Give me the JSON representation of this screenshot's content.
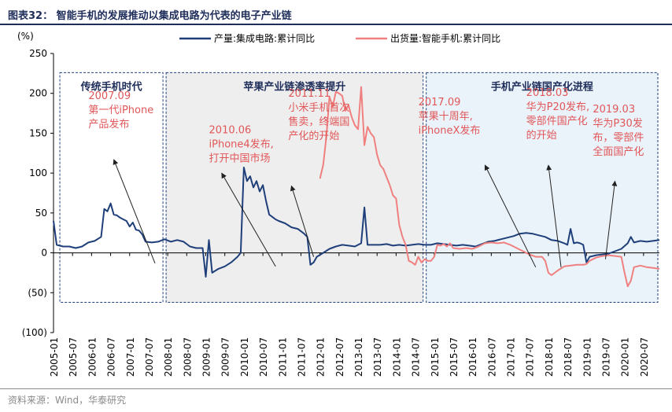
{
  "header": {
    "title": "图表32：  智能手机的发展推动以集成电路为代表的电子产业链"
  },
  "footer": {
    "source": "资料来源：Wind，华泰研究"
  },
  "chart_data": {
    "type": "line",
    "ylabel": "(%)",
    "ylim": [
      -100,
      250
    ],
    "yticks": [
      250,
      200,
      150,
      100,
      50,
      0,
      -50,
      -100
    ],
    "ytick_labels": [
      "250",
      "200",
      "150",
      "100",
      "50",
      "0",
      "(50)",
      "(100)"
    ],
    "x_tick_labels": [
      "2005-01",
      "2005-07",
      "2006-01",
      "2006-07",
      "2007-01",
      "2007-07",
      "2008-01",
      "2008-07",
      "2009-01",
      "2009-07",
      "2010-01",
      "2010-07",
      "2011-01",
      "2011-07",
      "2012-01",
      "2012-07",
      "2013-01",
      "2013-07",
      "2014-01",
      "2014-07",
      "2015-01",
      "2015-07",
      "2016-01",
      "2016-07",
      "2017-01",
      "2017-07",
      "2018-01",
      "2018-07",
      "2019-01",
      "2019-07",
      "2020-01",
      "2020-07"
    ],
    "legend_position": "top",
    "series": [
      {
        "name": "产量:集成电路:累计同比",
        "color": "#1f3f7a",
        "points": [
          [
            "2005-01",
            40
          ],
          [
            "2005-02",
            10
          ],
          [
            "2005-04",
            8
          ],
          [
            "2005-06",
            8
          ],
          [
            "2005-08",
            6
          ],
          [
            "2005-10",
            8
          ],
          [
            "2005-12",
            13
          ],
          [
            "2006-02",
            15
          ],
          [
            "2006-04",
            20
          ],
          [
            "2006-05",
            55
          ],
          [
            "2006-06",
            52
          ],
          [
            "2006-07",
            62
          ],
          [
            "2006-08",
            48
          ],
          [
            "2006-09",
            47
          ],
          [
            "2006-10",
            44
          ],
          [
            "2006-11",
            42
          ],
          [
            "2006-12",
            40
          ],
          [
            "2007-01",
            33
          ],
          [
            "2007-02",
            38
          ],
          [
            "2007-03",
            29
          ],
          [
            "2007-04",
            28
          ],
          [
            "2007-05",
            23
          ],
          [
            "2007-06",
            14
          ],
          [
            "2007-08",
            13
          ],
          [
            "2007-10",
            14
          ],
          [
            "2007-12",
            17
          ],
          [
            "2008-02",
            14
          ],
          [
            "2008-04",
            16
          ],
          [
            "2008-06",
            14
          ],
          [
            "2008-08",
            8
          ],
          [
            "2008-10",
            6
          ],
          [
            "2008-12",
            6
          ],
          [
            "2009-01",
            -30
          ],
          [
            "2009-02",
            16
          ],
          [
            "2009-03",
            -25
          ],
          [
            "2009-05",
            -20
          ],
          [
            "2009-07",
            -17
          ],
          [
            "2009-09",
            -12
          ],
          [
            "2009-11",
            -5
          ],
          [
            "2009-12",
            0
          ],
          [
            "2010-01",
            107
          ],
          [
            "2010-02",
            90
          ],
          [
            "2010-03",
            96
          ],
          [
            "2010-04",
            82
          ],
          [
            "2010-05",
            90
          ],
          [
            "2010-06",
            77
          ],
          [
            "2010-07",
            85
          ],
          [
            "2010-08",
            65
          ],
          [
            "2010-09",
            48
          ],
          [
            "2010-10",
            45
          ],
          [
            "2010-11",
            42
          ],
          [
            "2010-12",
            40
          ],
          [
            "2011-02",
            37
          ],
          [
            "2011-04",
            32
          ],
          [
            "2011-06",
            30
          ],
          [
            "2011-08",
            24
          ],
          [
            "2011-09",
            20
          ],
          [
            "2011-10",
            -15
          ],
          [
            "2011-11",
            -12
          ],
          [
            "2011-12",
            -5
          ],
          [
            "2012-02",
            0
          ],
          [
            "2012-04",
            5
          ],
          [
            "2012-06",
            8
          ],
          [
            "2012-08",
            10
          ],
          [
            "2012-10",
            9
          ],
          [
            "2012-12",
            8
          ],
          [
            "2013-02",
            12
          ],
          [
            "2013-03",
            57
          ],
          [
            "2013-04",
            10
          ],
          [
            "2013-06",
            10
          ],
          [
            "2013-08",
            10
          ],
          [
            "2013-10",
            11
          ],
          [
            "2013-12",
            9
          ],
          [
            "2014-02",
            10
          ],
          [
            "2014-04",
            9
          ],
          [
            "2014-06",
            10
          ],
          [
            "2014-08",
            11
          ],
          [
            "2014-10",
            10
          ],
          [
            "2014-12",
            10
          ],
          [
            "2015-02",
            12
          ],
          [
            "2015-04",
            11
          ],
          [
            "2015-06",
            10
          ],
          [
            "2015-08",
            9
          ],
          [
            "2015-10",
            10
          ],
          [
            "2015-12",
            9
          ],
          [
            "2016-02",
            8
          ],
          [
            "2016-04",
            11
          ],
          [
            "2016-06",
            14
          ],
          [
            "2016-08",
            15
          ],
          [
            "2016-10",
            17
          ],
          [
            "2016-12",
            19
          ],
          [
            "2017-02",
            21
          ],
          [
            "2017-04",
            24
          ],
          [
            "2017-06",
            25
          ],
          [
            "2017-08",
            24
          ],
          [
            "2017-10",
            22
          ],
          [
            "2017-12",
            20
          ],
          [
            "2018-02",
            16
          ],
          [
            "2018-04",
            15
          ],
          [
            "2018-06",
            12
          ],
          [
            "2018-07",
            10
          ],
          [
            "2018-08",
            30
          ],
          [
            "2018-09",
            12
          ],
          [
            "2018-10",
            13
          ],
          [
            "2018-11",
            12
          ],
          [
            "2018-12",
            10
          ],
          [
            "2019-01",
            -12
          ],
          [
            "2019-02",
            -5
          ],
          [
            "2019-04",
            -3
          ],
          [
            "2019-06",
            -2
          ],
          [
            "2019-08",
            -1
          ],
          [
            "2019-10",
            2
          ],
          [
            "2019-12",
            5
          ],
          [
            "2020-02",
            12
          ],
          [
            "2020-03",
            20
          ],
          [
            "2020-04",
            13
          ],
          [
            "2020-06",
            15
          ],
          [
            "2020-08",
            14
          ],
          [
            "2020-10",
            15
          ],
          [
            "2020-12",
            16
          ]
        ]
      },
      {
        "name": "出货量:智能手机:累计同比",
        "color": "#f08080",
        "points": [
          [
            "2012-01",
            93
          ],
          [
            "2012-02",
            110
          ],
          [
            "2012-03",
            145
          ],
          [
            "2012-04",
            196
          ],
          [
            "2012-05",
            183
          ],
          [
            "2012-06",
            202
          ],
          [
            "2012-07",
            200
          ],
          [
            "2012-08",
            197
          ],
          [
            "2012-09",
            178
          ],
          [
            "2012-10",
            185
          ],
          [
            "2012-11",
            170
          ],
          [
            "2012-12",
            160
          ],
          [
            "2013-01",
            155
          ],
          [
            "2013-02",
            208
          ],
          [
            "2013-03",
            135
          ],
          [
            "2013-04",
            158
          ],
          [
            "2013-05",
            150
          ],
          [
            "2013-06",
            145
          ],
          [
            "2013-07",
            123
          ],
          [
            "2013-08",
            110
          ],
          [
            "2013-09",
            105
          ],
          [
            "2013-10",
            95
          ],
          [
            "2013-11",
            85
          ],
          [
            "2013-12",
            72
          ],
          [
            "2014-01",
            68
          ],
          [
            "2014-02",
            35
          ],
          [
            "2014-03",
            20
          ],
          [
            "2014-04",
            10
          ],
          [
            "2014-05",
            -10
          ],
          [
            "2014-06",
            -12
          ],
          [
            "2014-07",
            -15
          ],
          [
            "2014-08",
            -5
          ],
          [
            "2014-09",
            -12
          ],
          [
            "2014-10",
            -8
          ],
          [
            "2014-11",
            -10
          ],
          [
            "2014-12",
            -10
          ],
          [
            "2015-01",
            -5
          ],
          [
            "2015-02",
            10
          ],
          [
            "2015-03",
            9
          ],
          [
            "2015-04",
            11
          ],
          [
            "2015-05",
            8
          ],
          [
            "2015-06",
            12
          ],
          [
            "2015-07",
            6
          ],
          [
            "2015-09",
            5
          ],
          [
            "2015-11",
            6
          ],
          [
            "2016-01",
            5
          ],
          [
            "2016-03",
            8
          ],
          [
            "2016-05",
            12
          ],
          [
            "2016-07",
            13
          ],
          [
            "2016-09",
            12
          ],
          [
            "2016-11",
            13
          ],
          [
            "2017-01",
            10
          ],
          [
            "2017-03",
            6
          ],
          [
            "2017-05",
            2
          ],
          [
            "2017-07",
            -2
          ],
          [
            "2017-09",
            -5
          ],
          [
            "2017-11",
            -5
          ],
          [
            "2017-12",
            -10
          ],
          [
            "2018-01",
            -25
          ],
          [
            "2018-02",
            -28
          ],
          [
            "2018-04",
            -22
          ],
          [
            "2018-06",
            -17
          ],
          [
            "2018-08",
            -16
          ],
          [
            "2018-10",
            -15
          ],
          [
            "2018-12",
            -15
          ],
          [
            "2019-01",
            -14
          ],
          [
            "2019-02",
            -10
          ],
          [
            "2019-04",
            -6
          ],
          [
            "2019-06",
            -4
          ],
          [
            "2019-08",
            -3
          ],
          [
            "2019-10",
            -4
          ],
          [
            "2019-12",
            -5
          ],
          [
            "2020-01",
            -25
          ],
          [
            "2020-02",
            -42
          ],
          [
            "2020-03",
            -35
          ],
          [
            "2020-04",
            -18
          ],
          [
            "2020-06",
            -16
          ],
          [
            "2020-08",
            -18
          ],
          [
            "2020-10",
            -19
          ],
          [
            "2020-12",
            -20
          ]
        ]
      }
    ],
    "regions": [
      {
        "label": "传统手机时代",
        "from": "2005-03",
        "to": "2007-12",
        "fill": "#ffffff"
      },
      {
        "label": "苹果产业链渗透率提升",
        "from": "2007-12",
        "to": "2014-10",
        "fill": "#eeeeee"
      },
      {
        "label": "手机产业链国产化进程",
        "from": "2014-10",
        "to": "2020-12",
        "fill": "#eaf3fa"
      }
    ],
    "annotations": [
      {
        "lines": [
          "2007.09",
          "第一代iPhone",
          "产品发布"
        ],
        "text_at": [
          "2005-12",
          193
        ],
        "arrow_from": [
          "2007-09",
          -13
        ],
        "arrow_to": [
          "2006-08",
          117
        ]
      },
      {
        "lines": [
          "2010.06",
          "iPhone4发布,",
          "打开中国市场"
        ],
        "text_at": [
          "2009-02",
          150
        ],
        "arrow_from": [
          "2010-11",
          -17
        ],
        "arrow_to": [
          "2009-06",
          100
        ]
      },
      {
        "lines": [
          "2011.11",
          "小米手机首次",
          "售卖，终端国",
          "产化的开始"
        ],
        "text_at": [
          "2011-03",
          196
        ],
        "arrow_from": [
          "2011-11",
          -5
        ],
        "arrow_to": [
          "2011-04",
          84
        ]
      },
      {
        "lines": [
          "2017.09",
          "苹果十周年,",
          "iPhoneX发布"
        ],
        "text_at": [
          "2014-08",
          185
        ],
        "arrow_from": [
          "2017-09",
          -18
        ],
        "arrow_to": [
          "2016-05",
          110
        ]
      },
      {
        "lines": [
          "2018.03",
          "华为P20发布,",
          "零部件国产化",
          "的开始"
        ],
        "text_at": [
          "2017-06",
          197
        ],
        "arrow_from": [
          "2018-05",
          -18
        ],
        "arrow_to": [
          "2018-01",
          110
        ]
      },
      {
        "lines": [
          "2019.03",
          "华为P30发",
          "布，零部件",
          "全面国产化"
        ],
        "text_at": [
          "2019-03",
          176
        ],
        "arrow_from": [
          "2019-07",
          -8
        ],
        "arrow_to": [
          "2019-10",
          90
        ]
      }
    ]
  }
}
